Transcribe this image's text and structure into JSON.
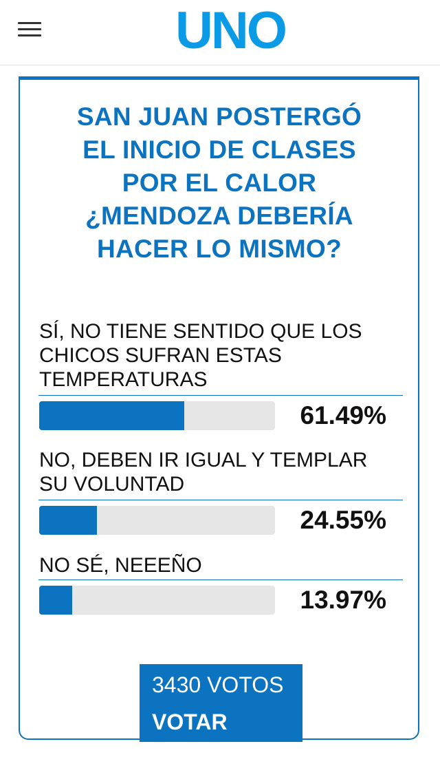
{
  "header": {
    "logo_text": "UNO",
    "logo_color": "#0b73bf",
    "menu_icon": "hamburger-menu-icon"
  },
  "poll": {
    "title_lines": [
      "SAN JUAN POSTERGÓ",
      "EL INICIO DE CLASES",
      "POR EL CALOR",
      "¿MENDOZA DEBERÍA",
      "HACER LO MISMO?"
    ],
    "options": [
      {
        "lines": [
          "SÍ, NO TIENE SENTIDO QUE LOS",
          "CHICOS SUFRAN ESTAS",
          "TEMPERATURAS"
        ],
        "percent_label": "61.49%",
        "percent": 61.49
      },
      {
        "lines": [
          "NO, DEBEN IR IGUAL Y TEMPLAR",
          "SU VOLUNTAD"
        ],
        "percent_label": "24.55%",
        "percent": 24.55
      },
      {
        "lines": [
          "NO SÉ, NEEEÑO"
        ],
        "percent_label": "13.97%",
        "percent": 13.97
      }
    ],
    "votes_label": "3430 VOTOS",
    "vote_button_label": "VOTAR",
    "accent_color": "#0b73bf",
    "track_color": "#e6e6e6"
  }
}
